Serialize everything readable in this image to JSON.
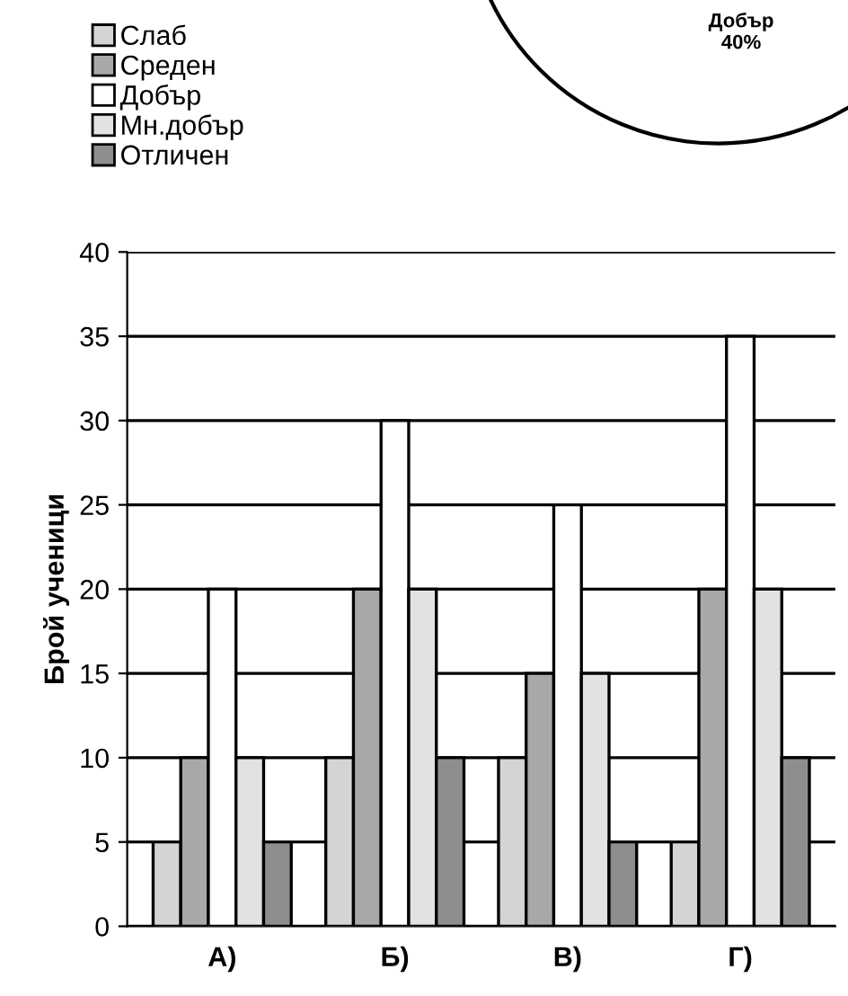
{
  "chart_data": [
    {
      "type": "bar",
      "ylabel": "Брой ученици",
      "categories": [
        "А)",
        "Б)",
        "В)",
        "Г)"
      ],
      "series": [
        {
          "name": "Слаб",
          "color": "#d4d4d4",
          "values": [
            5,
            10,
            10,
            5
          ]
        },
        {
          "name": "Среден",
          "color": "#a8a8a8",
          "values": [
            10,
            20,
            15,
            20
          ]
        },
        {
          "name": "Добър",
          "color": "#ffffff",
          "values": [
            20,
            30,
            25,
            35
          ]
        },
        {
          "name": "Мн.добър",
          "color": "#e2e2e2",
          "values": [
            10,
            20,
            15,
            20
          ]
        },
        {
          "name": "Отличен",
          "color": "#8e8e8e",
          "values": [
            5,
            10,
            5,
            10
          ]
        }
      ],
      "ylim": [
        0,
        40
      ],
      "yticks": [
        0,
        5,
        10,
        15,
        20,
        25,
        30,
        35,
        40
      ],
      "grid": "y",
      "legend": "top left"
    },
    {
      "type": "other",
      "annotations": [
        "Добър\n40%"
      ]
    }
  ]
}
